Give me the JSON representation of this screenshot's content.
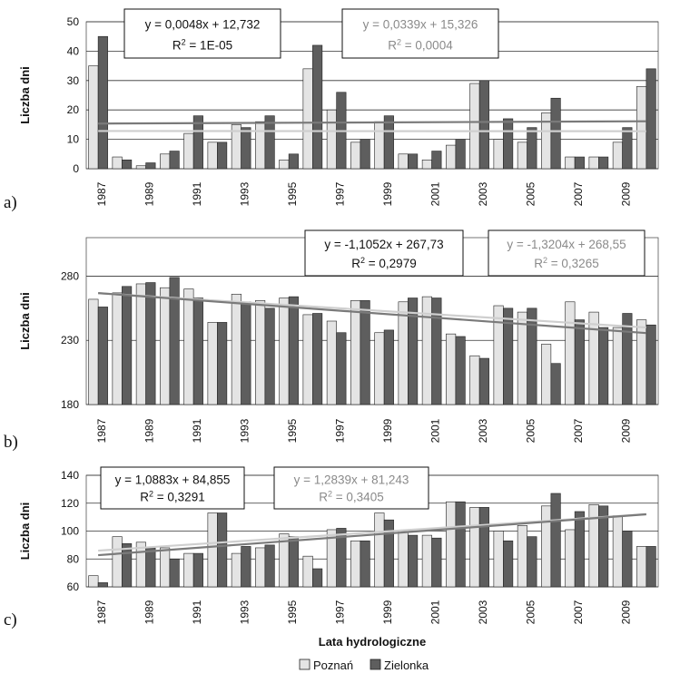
{
  "colors": {
    "poznan": "#e4e4e4",
    "zielonka": "#5e5e5e",
    "trend_poznan": "#cfcfcf",
    "trend_zielonka": "#7a7a7a",
    "eq_poznan": "#8a8a8a",
    "eq_zielonka": "#111111"
  },
  "legend": {
    "poznan": "Poznań",
    "zielonka": "Zielonka"
  },
  "xlabel": "Lata hydrologiczne",
  "chart_data": [
    {
      "type": "bar",
      "panel_label": "a)",
      "ylabel": "Liczba dni",
      "ylim": [
        0,
        50
      ],
      "yticks": [
        0,
        10,
        20,
        30,
        40,
        50
      ],
      "categories": [
        "1987",
        "1988",
        "1989",
        "1990",
        "1991",
        "1992",
        "1993",
        "1994",
        "1995",
        "1996",
        "1997",
        "1998",
        "1999",
        "2000",
        "2001",
        "2002",
        "2003",
        "2004",
        "2005",
        "2006",
        "2007",
        "2008",
        "2009",
        "2010"
      ],
      "xtick_labels": [
        "1987",
        "1989",
        "1991",
        "1993",
        "1995",
        "1997",
        "1999",
        "2001",
        "2003",
        "2005",
        "2007",
        "2009"
      ],
      "series": [
        {
          "name": "Poznań",
          "values": [
            35,
            4,
            1,
            5,
            12,
            9,
            15,
            16,
            3,
            34,
            20,
            9,
            16,
            5,
            3,
            8,
            29,
            10,
            9,
            19,
            4,
            4,
            9,
            28
          ]
        },
        {
          "name": "Zielonka",
          "values": [
            45,
            3,
            2,
            6,
            18,
            9,
            14,
            18,
            5,
            42,
            26,
            10,
            18,
            5,
            6,
            10,
            30,
            17,
            14,
            24,
            4,
            4,
            14,
            34
          ]
        }
      ],
      "trends": [
        {
          "series": "Zielonka",
          "equation": "y = 0,0048x + 12,732",
          "r2": "1E-05"
        },
        {
          "series": "Poznań",
          "equation": "y = 0,0339x + 15,326",
          "r2": "0,0004"
        }
      ],
      "r2_prefix": "R",
      "r2_sup": "2",
      "r2_eq": " = "
    },
    {
      "type": "bar",
      "panel_label": "b)",
      "ylabel": "Liczba dni",
      "ylim": [
        180,
        310
      ],
      "yticks": [
        180,
        230,
        280
      ],
      "categories": [
        "1987",
        "1988",
        "1989",
        "1990",
        "1991",
        "1992",
        "1993",
        "1994",
        "1995",
        "1996",
        "1997",
        "1998",
        "1999",
        "2000",
        "2001",
        "2002",
        "2003",
        "2004",
        "2005",
        "2006",
        "2007",
        "2008",
        "2009",
        "2010"
      ],
      "xtick_labels": [
        "1987",
        "1989",
        "1991",
        "1993",
        "1995",
        "1997",
        "1999",
        "2001",
        "2003",
        "2005",
        "2007",
        "2009"
      ],
      "series": [
        {
          "name": "Poznań",
          "values": [
            262,
            267,
            274,
            271,
            270,
            244,
            266,
            261,
            263,
            250,
            245,
            261,
            236,
            260,
            264,
            235,
            218,
            257,
            252,
            227,
            260,
            252,
            240,
            246
          ]
        },
        {
          "name": "Zielonka",
          "values": [
            256,
            272,
            275,
            279,
            263,
            244,
            260,
            255,
            264,
            251,
            236,
            261,
            238,
            263,
            263,
            233,
            216,
            255,
            255,
            212,
            246,
            240,
            251,
            242
          ]
        }
      ],
      "trends": [
        {
          "series": "Zielonka",
          "equation": "y = -1,1052x + 267,73",
          "r2": "0,2979"
        },
        {
          "series": "Poznań",
          "equation": "y = -1,3204x + 268,55",
          "r2": "0,3265"
        }
      ],
      "r2_prefix": "R",
      "r2_sup": "2",
      "r2_eq": " = "
    },
    {
      "type": "bar",
      "panel_label": "c)",
      "ylabel": "Liczba dni",
      "ylim": [
        60,
        140
      ],
      "yticks": [
        60,
        80,
        100,
        120,
        140
      ],
      "categories": [
        "1987",
        "1988",
        "1989",
        "1990",
        "1991",
        "1992",
        "1993",
        "1994",
        "1995",
        "1996",
        "1997",
        "1998",
        "1999",
        "2000",
        "2001",
        "2002",
        "2003",
        "2004",
        "2005",
        "2006",
        "2007",
        "2008",
        "2009",
        "2010"
      ],
      "xtick_labels": [
        "1987",
        "1989",
        "1991",
        "1993",
        "1995",
        "1997",
        "1999",
        "2001",
        "2003",
        "2005",
        "2007",
        "2009"
      ],
      "series": [
        {
          "name": "Poznań",
          "values": [
            68,
            96,
            92,
            88,
            84,
            113,
            84,
            88,
            98,
            82,
            101,
            93,
            113,
            100,
            97,
            121,
            117,
            100,
            104,
            118,
            101,
            119,
            111,
            89
          ]
        },
        {
          "name": "Zielonka",
          "values": [
            63,
            91,
            88,
            80,
            84,
            113,
            89,
            90,
            96,
            73,
            102,
            93,
            108,
            97,
            95,
            121,
            117,
            93,
            96,
            127,
            114,
            118,
            100,
            89
          ]
        }
      ],
      "trends": [
        {
          "series": "Zielonka",
          "equation": "y = 1,0883x + 84,855",
          "r2": "0,3291"
        },
        {
          "series": "Poznań",
          "equation": "y = 1,2839x + 81,243",
          "r2": "0,3405"
        }
      ],
      "r2_prefix": "R",
      "r2_sup": "2",
      "r2_eq": " = "
    }
  ]
}
